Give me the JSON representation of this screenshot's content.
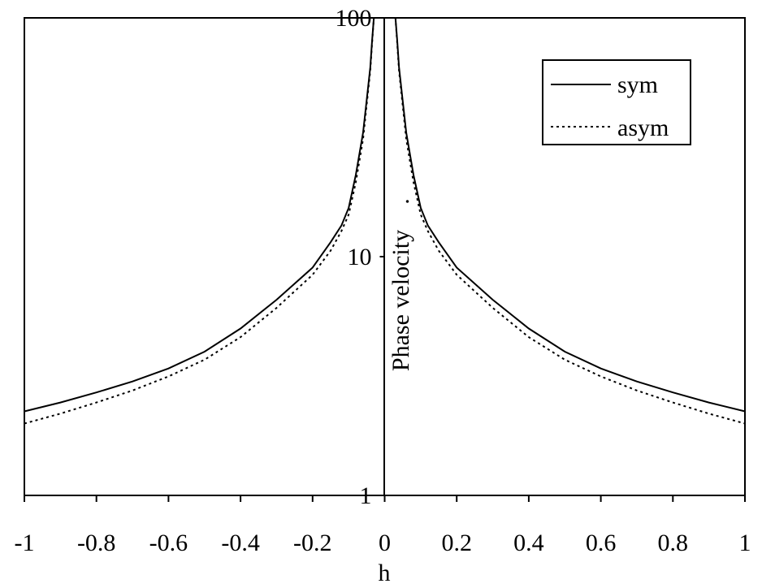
{
  "chart_data": {
    "type": "line",
    "title": "",
    "xlabel": "h",
    "ylabel": "Phase velocity",
    "ylabel_mark": ".",
    "xlim": [
      -1,
      1
    ],
    "ylim": [
      1,
      100
    ],
    "yscale": "log",
    "grid": false,
    "legend_position": "top-right",
    "x_ticks": [
      "-1",
      "-0.8",
      "-0.6",
      "-0.4",
      "-0.2",
      "0",
      "0.2",
      "0.4",
      "0.6",
      "0.8",
      "1"
    ],
    "y_ticks": [
      "1",
      "10",
      "100"
    ],
    "series": [
      {
        "name": "sym",
        "style": "solid",
        "color": "#000000",
        "x": [
          -1,
          -0.9,
          -0.8,
          -0.7,
          -0.6,
          -0.5,
          -0.4,
          -0.3,
          -0.2,
          -0.15,
          -0.12,
          -0.1,
          -0.08,
          -0.06,
          -0.05,
          -0.04,
          -0.035,
          -0.03,
          0.03,
          0.035,
          0.04,
          0.05,
          0.06,
          0.08,
          0.1,
          0.12,
          0.15,
          0.2,
          0.3,
          0.4,
          0.5,
          0.6,
          0.7,
          0.8,
          0.9,
          1
        ],
        "y": [
          2.25,
          2.45,
          2.7,
          3.0,
          3.4,
          4.0,
          5.0,
          6.6,
          9.0,
          11.5,
          13.5,
          16.0,
          22.0,
          33.0,
          45.0,
          62.0,
          80.0,
          100,
          100,
          80.0,
          62.0,
          45.0,
          33.0,
          22.0,
          16.0,
          13.5,
          11.5,
          9.0,
          6.6,
          5.0,
          4.0,
          3.4,
          3.0,
          2.7,
          2.45,
          2.25
        ]
      },
      {
        "name": "asym",
        "style": "dotted",
        "color": "#000000",
        "x": [
          -1,
          -0.9,
          -0.8,
          -0.7,
          -0.6,
          -0.5,
          -0.4,
          -0.3,
          -0.2,
          -0.15,
          -0.12,
          -0.1,
          -0.08,
          -0.06,
          -0.05,
          -0.04,
          -0.035,
          -0.03,
          0.03,
          0.035,
          0.04,
          0.05,
          0.06,
          0.08,
          0.1,
          0.12,
          0.15,
          0.2,
          0.3,
          0.4,
          0.5,
          0.6,
          0.7,
          0.8,
          0.9,
          1
        ],
        "y": [
          2.0,
          2.2,
          2.45,
          2.75,
          3.15,
          3.7,
          4.6,
          6.1,
          8.4,
          10.6,
          12.8,
          15.0,
          20.5,
          31.0,
          43.0,
          60.0,
          78.0,
          100,
          100,
          78.0,
          60.0,
          43.0,
          31.0,
          20.5,
          15.0,
          12.8,
          10.6,
          8.4,
          6.1,
          4.6,
          3.7,
          3.15,
          2.75,
          2.45,
          2.2,
          2.0
        ]
      }
    ]
  }
}
